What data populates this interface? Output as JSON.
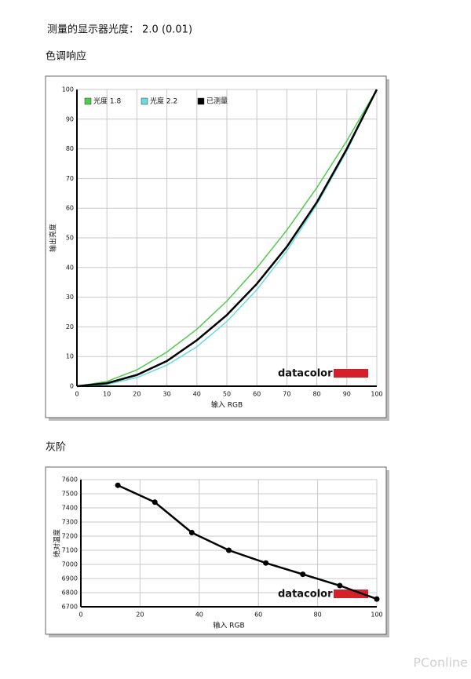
{
  "measured_gamma_text": "测量的显示器光度： 2.0 (0.01)",
  "watermark": "PConline",
  "chart_data": [
    {
      "type": "line",
      "title": "色调响应",
      "x_label": "输入 RGB",
      "y_label": "输出亮度",
      "brand": "datacolor",
      "x": [
        0,
        10,
        20,
        30,
        40,
        50,
        60,
        70,
        80,
        90,
        100
      ],
      "series": [
        {
          "name": "光度 1.8",
          "color": "#4ccc4c",
          "values": [
            0,
            1.6,
            5.5,
            11.5,
            19.2,
            28.7,
            39.9,
            52.6,
            66.9,
            82.7,
            100
          ]
        },
        {
          "name": "光度 2.2",
          "color": "#66dddd",
          "values": [
            0,
            0.6,
            2.9,
            7.1,
            13.3,
            21.8,
            32.5,
            45.6,
            61.2,
            79.3,
            100
          ]
        },
        {
          "name": "已测量",
          "color": "#000000",
          "values": [
            0,
            1,
            3.8,
            8.5,
            15.5,
            24,
            34.5,
            47,
            62,
            80,
            100
          ]
        }
      ],
      "xlim": [
        0,
        100
      ],
      "xticks": [
        0,
        10,
        20,
        30,
        40,
        50,
        60,
        70,
        80,
        90,
        100
      ],
      "ylim": [
        0,
        100
      ],
      "yticks": [
        0,
        10,
        20,
        30,
        40,
        50,
        60,
        70,
        80,
        90,
        100
      ],
      "grid": true,
      "legend": "top-left"
    },
    {
      "type": "line",
      "title": "灰阶",
      "x_label": "输入 RGB",
      "y_label": "绝对温度",
      "brand": "datacolor",
      "x": [
        12.5,
        25,
        37.5,
        50,
        62.5,
        75,
        87.5,
        100
      ],
      "values": [
        7560,
        7440,
        7225,
        7100,
        7010,
        6930,
        6850,
        6755
      ],
      "color": "#000000",
      "xlim": [
        0,
        100
      ],
      "xticks": [
        0,
        20,
        40,
        60,
        80,
        100
      ],
      "ylim": [
        6700,
        7600
      ],
      "yticks": [
        6700,
        6800,
        6900,
        7000,
        7100,
        7200,
        7300,
        7400,
        7500,
        7600
      ],
      "grid": true,
      "markers": true
    }
  ]
}
